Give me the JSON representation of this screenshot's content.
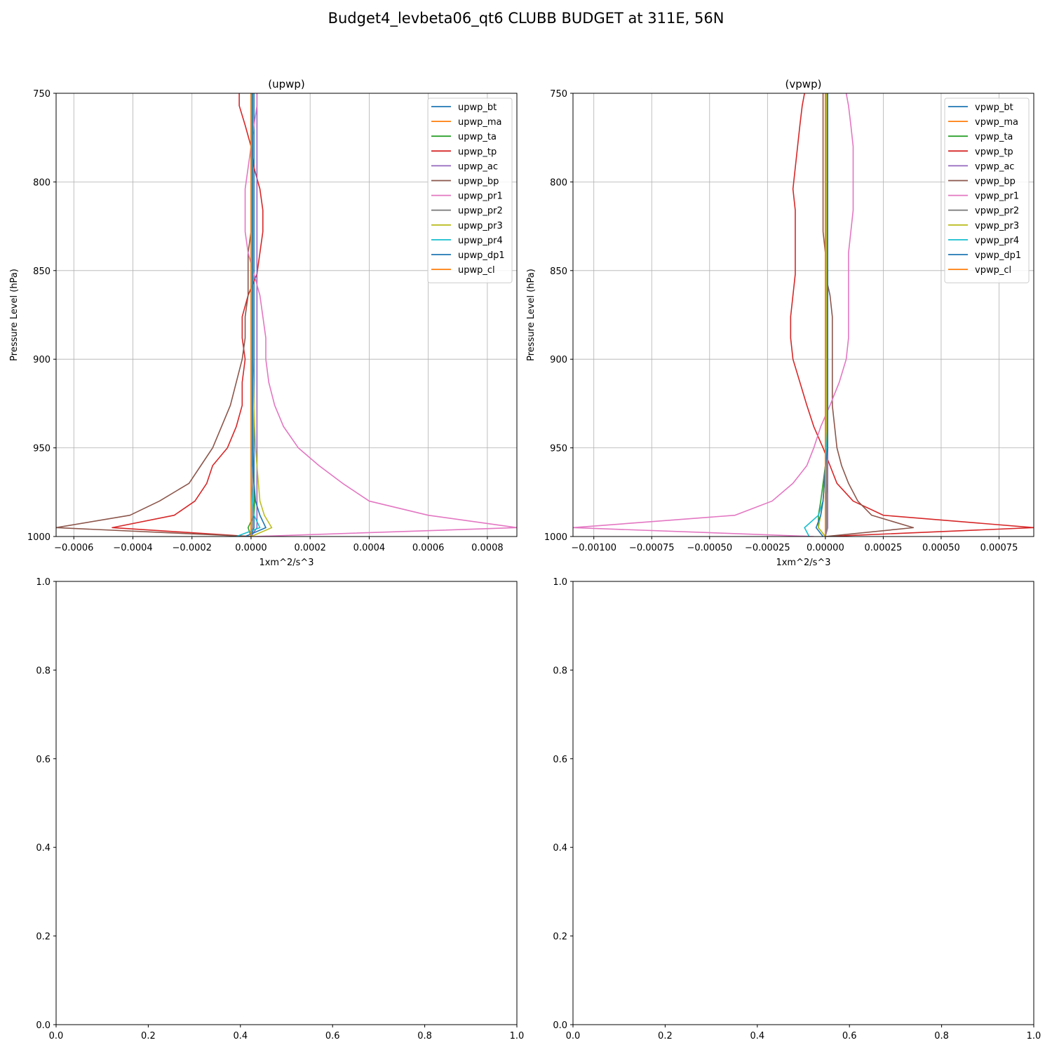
{
  "figure": {
    "title": "Budget4_levbeta06_qt6 CLUBB BUDGET at 311E, 56N"
  },
  "chart_data": [
    {
      "type": "line",
      "title": "(upwp)",
      "xlabel": "1xm^2/s^3",
      "ylabel": "Pressure Level (hPa)",
      "xlim": [
        -0.00066,
        0.0009
      ],
      "ylim": [
        1000,
        750
      ],
      "xticks": [
        -0.0006,
        -0.0004,
        -0.0002,
        0.0,
        0.0002,
        0.0004,
        0.0006,
        0.0008
      ],
      "xtick_labels": [
        "−0.0006",
        "−0.0004",
        "−0.0002",
        "0.0000",
        "0.0002",
        "0.0004",
        "0.0006",
        "0.0008"
      ],
      "yticks": [
        750,
        800,
        850,
        900,
        950,
        1000
      ],
      "ytick_labels": [
        "750",
        "800",
        "850",
        "900",
        "950",
        "1000"
      ],
      "grid": true,
      "legend": "upper right",
      "y_levels": [
        750,
        757,
        768,
        780,
        792,
        804,
        816,
        828,
        840,
        852,
        864,
        876,
        888,
        900,
        913,
        926,
        938,
        950,
        960,
        970,
        980,
        988,
        995,
        1000
      ],
      "series": [
        {
          "name": "upwp_bt",
          "color": "#1f77b4",
          "values": [
            1e-05,
            1e-05,
            1e-05,
            1e-05,
            1e-05,
            1e-05,
            1e-05,
            1e-05,
            1e-05,
            1e-05,
            1e-05,
            1e-05,
            1e-05,
            1e-05,
            1e-05,
            1e-05,
            1e-05,
            1e-05,
            1e-05,
            1e-05,
            1e-05,
            1e-05,
            1e-05,
            0.0
          ]
        },
        {
          "name": "upwp_ma",
          "color": "#ff7f0e",
          "values": [
            0.0,
            0.0,
            0.0,
            0.0,
            0.0,
            0.0,
            0.0,
            0.0,
            0.0,
            0.0,
            0.0,
            0.0,
            0.0,
            0.0,
            0.0,
            0.0,
            0.0,
            0.0,
            0.0,
            0.0,
            0.0,
            0.0,
            0.0,
            0.0
          ]
        },
        {
          "name": "upwp_ta",
          "color": "#2ca02c",
          "values": [
            5e-06,
            5e-06,
            5e-06,
            5e-06,
            5e-06,
            5e-06,
            5e-06,
            5e-06,
            5e-06,
            5e-06,
            5e-06,
            5e-06,
            5e-06,
            5e-06,
            5e-06,
            5e-06,
            5e-06,
            5e-06,
            7e-06,
            1e-05,
            1.2e-05,
            1e-05,
            -1e-05,
            0.0
          ]
        },
        {
          "name": "upwp_tp",
          "color": "#d62728",
          "values": [
            -4e-05,
            -4e-05,
            -2e-05,
            0.0,
            1e-05,
            3e-05,
            4e-05,
            4e-05,
            3e-05,
            2e-05,
            -1e-05,
            -3e-05,
            -3e-05,
            -2e-05,
            -3e-05,
            -3e-05,
            -5e-05,
            -8e-05,
            -0.00013,
            -0.00015,
            -0.00019,
            -0.00026,
            -0.00047,
            0.0
          ]
        },
        {
          "name": "upwp_ac",
          "color": "#9467bd",
          "values": [
            2e-05,
            2e-05,
            2e-05,
            2e-05,
            2e-05,
            2e-05,
            2e-05,
            2e-05,
            2e-05,
            2e-05,
            2e-05,
            2e-05,
            2e-05,
            2e-05,
            2e-05,
            2e-05,
            2e-05,
            2e-05,
            2e-05,
            2e-05,
            2e-05,
            2e-05,
            2e-05,
            0.0
          ]
        },
        {
          "name": "upwp_bp",
          "color": "#8c564b",
          "values": [
            0.0,
            0.0,
            0.0,
            0.0,
            0.0,
            0.0,
            0.0,
            0.0,
            -1e-05,
            -1e-05,
            -1e-05,
            -2e-05,
            -2e-05,
            -3e-05,
            -5e-05,
            -7e-05,
            -0.0001,
            -0.00013,
            -0.00017,
            -0.00021,
            -0.00031,
            -0.00041,
            -0.00066,
            0.0
          ]
        },
        {
          "name": "upwp_pr1",
          "color": "#e377c2",
          "values": [
            2e-05,
            2e-05,
            1e-05,
            0.0,
            -1e-05,
            -2e-05,
            -2e-05,
            -2e-05,
            -1e-05,
            1e-05,
            3e-05,
            4e-05,
            5e-05,
            5e-05,
            6e-05,
            8e-05,
            0.00011,
            0.00016,
            0.00023,
            0.00031,
            0.0004,
            0.0006,
            0.0009,
            1e-05
          ]
        },
        {
          "name": "upwp_pr2",
          "color": "#7f7f7f",
          "values": [
            5e-06,
            5e-06,
            5e-06,
            5e-06,
            5e-06,
            5e-06,
            5e-06,
            5e-06,
            5e-06,
            5e-06,
            5e-06,
            5e-06,
            5e-06,
            5e-06,
            5e-06,
            5e-06,
            5e-06,
            5e-06,
            5e-06,
            5e-06,
            5e-06,
            5e-06,
            5e-06,
            0.0
          ]
        },
        {
          "name": "upwp_pr3",
          "color": "#bcbd22",
          "values": [
            5e-06,
            5e-06,
            5e-06,
            5e-06,
            5e-06,
            5e-06,
            5e-06,
            5e-06,
            5e-06,
            5e-06,
            5e-06,
            5e-06,
            5e-06,
            5e-06,
            8e-06,
            1e-05,
            1.2e-05,
            1.5e-05,
            2e-05,
            2.5e-05,
            3e-05,
            4.5e-05,
            7e-05,
            0.0
          ]
        },
        {
          "name": "upwp_pr4",
          "color": "#17becf",
          "values": [
            0.0,
            0.0,
            0.0,
            0.0,
            0.0,
            0.0,
            0.0,
            0.0,
            0.0,
            0.0,
            0.0,
            0.0,
            0.0,
            0.0,
            0.0,
            0.0,
            0.0,
            0.0,
            0.0,
            0.0,
            5e-06,
            1e-05,
            3e-05,
            -5e-05
          ]
        },
        {
          "name": "upwp_dp1",
          "color": "#1f77b4",
          "values": [
            5e-06,
            5e-06,
            5e-06,
            5e-06,
            5e-06,
            5e-06,
            5e-06,
            5e-06,
            5e-06,
            5e-06,
            5e-06,
            5e-06,
            5e-06,
            5e-06,
            5e-06,
            5e-06,
            5e-06,
            5e-06,
            5e-06,
            1e-05,
            1.5e-05,
            3e-05,
            5e-05,
            -2e-05
          ]
        },
        {
          "name": "upwp_cl",
          "color": "#ff7f0e",
          "values": [
            0.0,
            0.0,
            0.0,
            0.0,
            0.0,
            0.0,
            0.0,
            0.0,
            0.0,
            0.0,
            0.0,
            0.0,
            0.0,
            0.0,
            0.0,
            0.0,
            0.0,
            0.0,
            0.0,
            0.0,
            0.0,
            0.0,
            0.0,
            0.0
          ]
        }
      ]
    },
    {
      "type": "line",
      "title": "(vpwp)",
      "xlabel": "1xm^2/s^3",
      "ylabel": "Pressure Level (hPa)",
      "xlim": [
        -0.00109,
        0.0009
      ],
      "ylim": [
        1000,
        750
      ],
      "xticks": [
        -0.001,
        -0.00075,
        -0.0005,
        -0.00025,
        0.0,
        0.00025,
        0.0005,
        0.00075
      ],
      "xtick_labels": [
        "−0.00100",
        "−0.00075",
        "−0.00050",
        "−0.00025",
        "0.00000",
        "0.00025",
        "0.00050",
        "0.00075"
      ],
      "yticks": [
        750,
        800,
        850,
        900,
        950,
        1000
      ],
      "ytick_labels": [
        "750",
        "800",
        "850",
        "900",
        "950",
        "1000"
      ],
      "grid": true,
      "legend": "upper right",
      "y_levels": [
        750,
        757,
        768,
        780,
        792,
        804,
        816,
        828,
        840,
        852,
        864,
        876,
        888,
        900,
        913,
        926,
        938,
        950,
        960,
        970,
        980,
        988,
        995,
        1000
      ],
      "series": [
        {
          "name": "vpwp_bt",
          "color": "#1f77b4",
          "values": [
            1e-05,
            1e-05,
            1e-05,
            1e-05,
            1e-05,
            1e-05,
            1e-05,
            1e-05,
            1e-05,
            1e-05,
            1e-05,
            1e-05,
            1e-05,
            1e-05,
            1e-05,
            1e-05,
            1e-05,
            1e-05,
            1e-05,
            1e-05,
            0.0,
            0.0,
            0.0,
            0.0
          ]
        },
        {
          "name": "vpwp_ma",
          "color": "#ff7f0e",
          "values": [
            0.0,
            0.0,
            0.0,
            0.0,
            0.0,
            0.0,
            0.0,
            0.0,
            0.0,
            0.0,
            0.0,
            0.0,
            0.0,
            0.0,
            0.0,
            0.0,
            0.0,
            0.0,
            0.0,
            0.0,
            0.0,
            0.0,
            0.0,
            0.0
          ]
        },
        {
          "name": "vpwp_ta",
          "color": "#2ca02c",
          "values": [
            5e-06,
            5e-06,
            5e-06,
            5e-06,
            5e-06,
            5e-06,
            5e-06,
            5e-06,
            5e-06,
            5e-06,
            5e-06,
            5e-06,
            5e-06,
            5e-06,
            5e-06,
            5e-06,
            5e-06,
            5e-06,
            0.0,
            -1e-05,
            -2e-05,
            -3e-05,
            -3e-05,
            0.0
          ]
        },
        {
          "name": "vpwp_tp",
          "color": "#d62728",
          "values": [
            -9e-05,
            -0.0001,
            -0.00011,
            -0.00012,
            -0.00013,
            -0.00014,
            -0.00013,
            -0.00013,
            -0.00013,
            -0.00013,
            -0.00014,
            -0.00015,
            -0.00015,
            -0.00014,
            -0.00011,
            -8e-05,
            -5e-05,
            -1e-05,
            2e-05,
            5e-05,
            0.00012,
            0.00025,
            0.0009,
            0.0
          ]
        },
        {
          "name": "vpwp_ac",
          "color": "#9467bd",
          "values": [
            1e-05,
            1e-05,
            1e-05,
            1e-05,
            1e-05,
            1e-05,
            1e-05,
            1e-05,
            1e-05,
            1e-05,
            1e-05,
            1e-05,
            1e-05,
            1e-05,
            1e-05,
            1e-05,
            1e-05,
            1e-05,
            1e-05,
            1e-05,
            1e-05,
            1e-05,
            1e-05,
            0.0
          ]
        },
        {
          "name": "vpwp_bp",
          "color": "#8c564b",
          "values": [
            -1e-05,
            -1e-05,
            -1e-05,
            -1e-05,
            -1e-05,
            -1e-05,
            -1e-05,
            -1e-05,
            0.0,
            0.0,
            2e-05,
            3e-05,
            3e-05,
            3e-05,
            3e-05,
            3e-05,
            4e-05,
            5e-05,
            7e-05,
            0.0001,
            0.00014,
            0.0002,
            0.00038,
            0.0
          ]
        },
        {
          "name": "vpwp_pr1",
          "color": "#e377c2",
          "values": [
            9e-05,
            0.0001,
            0.00011,
            0.00012,
            0.00012,
            0.00012,
            0.00012,
            0.00011,
            0.0001,
            0.0001,
            0.0001,
            0.0001,
            0.0001,
            9e-05,
            6e-05,
            2e-05,
            -2e-05,
            -5e-05,
            -8e-05,
            -0.00014,
            -0.00023,
            -0.00039,
            -0.00109,
            -5e-05
          ]
        },
        {
          "name": "vpwp_pr2",
          "color": "#7f7f7f",
          "values": [
            5e-06,
            5e-06,
            5e-06,
            5e-06,
            5e-06,
            5e-06,
            5e-06,
            5e-06,
            5e-06,
            5e-06,
            5e-06,
            5e-06,
            5e-06,
            5e-06,
            5e-06,
            5e-06,
            5e-06,
            5e-06,
            5e-06,
            5e-06,
            5e-06,
            5e-06,
            5e-06,
            0.0
          ]
        },
        {
          "name": "vpwp_pr3",
          "color": "#bcbd22",
          "values": [
            5e-06,
            5e-06,
            5e-06,
            5e-06,
            5e-06,
            5e-06,
            5e-06,
            5e-06,
            5e-06,
            5e-06,
            5e-06,
            5e-06,
            5e-06,
            5e-06,
            5e-06,
            5e-06,
            5e-06,
            5e-06,
            0.0,
            -5e-06,
            -1e-05,
            -2e-05,
            -3e-05,
            0.0
          ]
        },
        {
          "name": "vpwp_pr4",
          "color": "#17becf",
          "values": [
            1e-05,
            1e-05,
            1e-05,
            1e-05,
            1e-05,
            1e-05,
            1e-05,
            1e-05,
            1e-05,
            1e-05,
            1e-05,
            1e-05,
            1e-05,
            1e-05,
            1e-05,
            1e-05,
            1e-05,
            5e-06,
            0.0,
            -5e-06,
            -1e-05,
            -3e-05,
            -9e-05,
            -7e-05
          ]
        },
        {
          "name": "vpwp_dp1",
          "color": "#1f77b4",
          "values": [
            1e-05,
            1e-05,
            1e-05,
            1e-05,
            1e-05,
            1e-05,
            1e-05,
            1e-05,
            1e-05,
            1e-05,
            1e-05,
            1e-05,
            1e-05,
            1e-05,
            1e-05,
            1e-05,
            1e-05,
            1e-05,
            0.0,
            -5e-06,
            -1e-05,
            -2e-05,
            -4e-05,
            -1e-05
          ]
        },
        {
          "name": "vpwp_cl",
          "color": "#ff7f0e",
          "values": [
            0.0,
            0.0,
            0.0,
            0.0,
            0.0,
            0.0,
            0.0,
            0.0,
            0.0,
            0.0,
            0.0,
            0.0,
            0.0,
            0.0,
            0.0,
            0.0,
            0.0,
            0.0,
            0.0,
            0.0,
            0.0,
            0.0,
            0.0,
            0.0
          ]
        }
      ]
    },
    {
      "type": "line",
      "title": "",
      "xlim": [
        0.0,
        1.0
      ],
      "ylim": [
        0.0,
        1.0
      ],
      "xticks": [
        0.0,
        0.2,
        0.4,
        0.6,
        0.8,
        1.0
      ],
      "xtick_labels": [
        "0.0",
        "0.2",
        "0.4",
        "0.6",
        "0.8",
        "1.0"
      ],
      "yticks": [
        0.0,
        0.2,
        0.4,
        0.6,
        0.8,
        1.0
      ],
      "ytick_labels": [
        "0.0",
        "0.2",
        "0.4",
        "0.6",
        "0.8",
        "1.0"
      ],
      "grid": false,
      "series": []
    },
    {
      "type": "line",
      "title": "",
      "xlim": [
        0.0,
        1.0
      ],
      "ylim": [
        0.0,
        1.0
      ],
      "xticks": [
        0.0,
        0.2,
        0.4,
        0.6,
        0.8,
        1.0
      ],
      "xtick_labels": [
        "0.0",
        "0.2",
        "0.4",
        "0.6",
        "0.8",
        "1.0"
      ],
      "yticks": [
        0.0,
        0.2,
        0.4,
        0.6,
        0.8,
        1.0
      ],
      "ytick_labels": [
        "0.0",
        "0.2",
        "0.4",
        "0.6",
        "0.8",
        "1.0"
      ],
      "grid": false,
      "series": []
    }
  ]
}
